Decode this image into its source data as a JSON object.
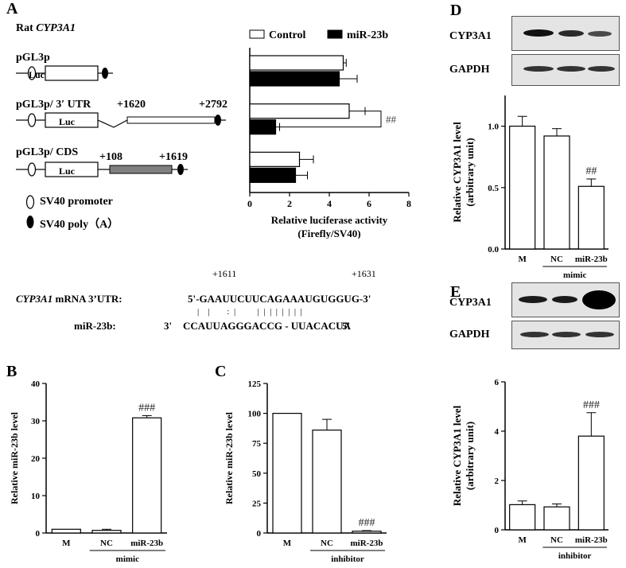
{
  "panels": {
    "A": "A",
    "B": "B",
    "C": "C",
    "D": "D",
    "E": "E"
  },
  "construct_map": {
    "species": "Rat",
    "gene": "CYP3A1",
    "constructs": [
      {
        "name": "pGL3p",
        "start": "",
        "end": ""
      },
      {
        "name": "pGL3p/ 3′ UTR",
        "start": "+1620",
        "end": "+2792"
      },
      {
        "name": "pGL3p/ CDS",
        "start": "+108",
        "end": "+1619"
      }
    ],
    "luc_label": "Luc",
    "legend": {
      "promoter": "SV40 promoter",
      "polyA": "SV40 poly（A）"
    }
  },
  "alignment": {
    "pos_left": "+1611",
    "pos_right": "+1631",
    "mrna_label_gene": "CYP3A1",
    "mrna_label_rest": " mRNA 3’UTR:",
    "mrna_seq": "5'-GAAUUCUUCAGAAAUGUGGUG-3'",
    "pairing": "|    |        :  |          |  |  |  |  |  |  |  |",
    "mir_label": "miR-23b:",
    "mir_5": "3'",
    "mir_seq": "CCAUUAGGGACCG - UUACACUA",
    "mir_3": "5'"
  },
  "blots": {
    "D": {
      "target": "CYP3A1",
      "loading": "GAPDH"
    },
    "E": {
      "target": "CYP3A1",
      "loading": "GAPDH"
    }
  },
  "chart_data": [
    {
      "panel": "A",
      "type": "bar",
      "orientation": "horizontal",
      "categories": [
        "pGL3p",
        "pGL3p/ 3′ UTR",
        "pGL3p/ CDS"
      ],
      "series": [
        {
          "name": "Control",
          "color": "#ffffff",
          "values": [
            4.7,
            5.0,
            2.5
          ],
          "errors": [
            0.15,
            0.8,
            0.7
          ]
        },
        {
          "name": "miR-23b",
          "color": "#000000",
          "values": [
            4.5,
            1.3,
            2.3
          ],
          "errors": [
            0.9,
            0.2,
            0.6
          ]
        }
      ],
      "xlim": [
        0,
        8
      ],
      "xticks": [
        "0",
        "2",
        "4",
        "6",
        "8"
      ],
      "xlabel_line1": "Relative luciferase activity",
      "xlabel_line2": "(Firefly/SV40)",
      "significance": "##"
    },
    {
      "panel": "B",
      "type": "bar",
      "categories": [
        "M",
        "NC",
        "miR-23b"
      ],
      "values": [
        1.0,
        0.7,
        30.8
      ],
      "errors": [
        0.0,
        0.3,
        0.6
      ],
      "ylim": [
        0,
        40
      ],
      "yticks": [
        "0",
        "10",
        "20",
        "30",
        "40"
      ],
      "ylabel": "Relative miR-23b level",
      "group_label": "mimic",
      "significance": "###"
    },
    {
      "panel": "C",
      "type": "bar",
      "categories": [
        "M",
        "NC",
        "miR-23b"
      ],
      "values": [
        100,
        86,
        1.5
      ],
      "errors": [
        0,
        9,
        0.5
      ],
      "ylim": [
        0,
        125
      ],
      "yticks": [
        "0",
        "25",
        "50",
        "75",
        "100",
        "125"
      ],
      "ylabel": "Relative miR-23b level",
      "group_label": "inhibitor",
      "significance": "###"
    },
    {
      "panel": "D",
      "type": "bar",
      "categories": [
        "M",
        "NC",
        "miR-23b"
      ],
      "values": [
        1.0,
        0.92,
        0.51
      ],
      "errors": [
        0.08,
        0.06,
        0.06
      ],
      "ylim": [
        0,
        1.25
      ],
      "yticks": [
        "0.0",
        "0.5",
        "1.0"
      ],
      "ylabel_line1": "Relative CYP3A1 level",
      "ylabel_line2": "(arbitrary unit)",
      "group_label": "mimic",
      "significance": "##"
    },
    {
      "panel": "E",
      "type": "bar",
      "categories": [
        "M",
        "NC",
        "miR-23b"
      ],
      "values": [
        1.02,
        0.93,
        3.8
      ],
      "errors": [
        0.15,
        0.12,
        0.95
      ],
      "ylim": [
        0,
        6
      ],
      "yticks": [
        "0",
        "2",
        "4",
        "6"
      ],
      "ylabel_line1": "Relative CYP3A1 level",
      "ylabel_line2": "(arbitrary unit)",
      "group_label": "inhibitor",
      "significance": "###"
    }
  ]
}
